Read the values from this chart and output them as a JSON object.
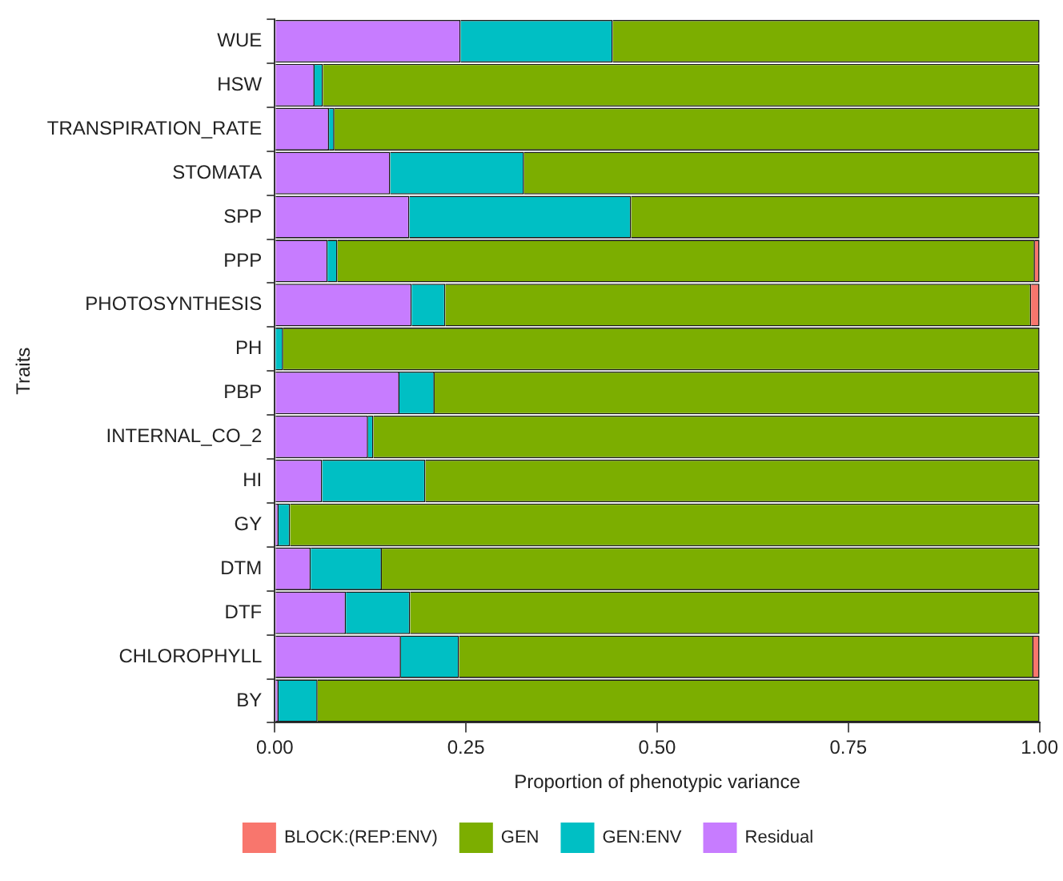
{
  "chart_data": {
    "type": "bar",
    "orientation": "horizontal",
    "stacked": true,
    "xlabel": "Proportion of phenotypic variance",
    "ylabel": "Traits",
    "categories": [
      "WUE",
      "HSW",
      "TRANSPIRATION_RATE",
      "STOMATA",
      "SPP",
      "PPP",
      "PHOTOSYNTHESIS",
      "PH",
      "PBP",
      "INTERNAL_CO_2",
      "HI",
      "GY",
      "DTM",
      "DTF",
      "CHLOROPHYLL",
      "BY"
    ],
    "series": [
      {
        "name": "Residual",
        "color": "#c77cff",
        "values": [
          0.243,
          0.052,
          0.071,
          0.151,
          0.176,
          0.069,
          0.179,
          null,
          0.163,
          0.122,
          0.062,
          0.005,
          0.047,
          0.093,
          0.165,
          0.005
        ]
      },
      {
        "name": "GEN:ENV",
        "color": "#00bfc4",
        "values": [
          0.199,
          0.011,
          0.007,
          0.175,
          0.29,
          0.013,
          0.044,
          0.011,
          0.046,
          0.007,
          0.135,
          0.015,
          0.093,
          0.084,
          0.076,
          0.051
        ]
      },
      {
        "name": "GEN",
        "color": "#7cae00",
        "values": [
          0.558,
          0.937,
          0.922,
          0.674,
          0.534,
          0.912,
          0.766,
          0.989,
          0.791,
          0.871,
          0.803,
          0.98,
          0.86,
          0.823,
          0.751,
          0.944
        ]
      },
      {
        "name": "BLOCK:(REP:ENV)",
        "color": "#f8766d",
        "values": [
          0,
          0,
          0,
          0,
          0,
          0.006,
          0.011,
          0,
          0,
          0,
          0,
          0,
          0,
          0,
          0.008,
          0
        ]
      }
    ],
    "xlim": [
      0,
      1
    ],
    "xticks": [
      {
        "value": 0,
        "label": "0.00"
      },
      {
        "value": 0.25,
        "label": "0.25"
      },
      {
        "value": 0.5,
        "label": "0.50"
      },
      {
        "value": 0.75,
        "label": "0.75"
      },
      {
        "value": 1,
        "label": "1.00"
      }
    ],
    "grid": false,
    "legend": "bottom"
  }
}
